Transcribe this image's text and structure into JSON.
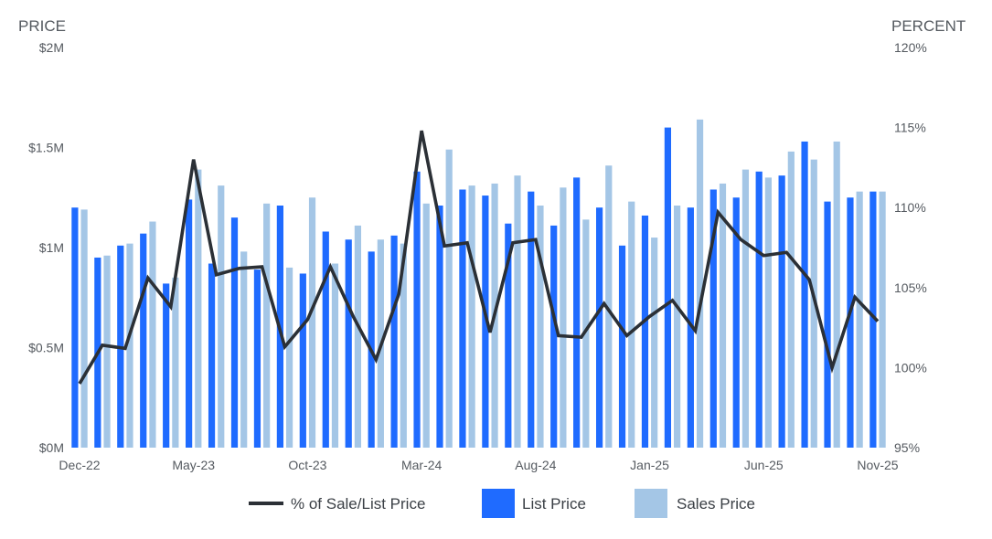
{
  "chart_data": {
    "type": "bar",
    "left_axis_title": "PRICE",
    "right_axis_title": "PERCENT",
    "left_ticks": [
      {
        "value": 0,
        "label": "$0M"
      },
      {
        "value": 500000,
        "label": "$0.5M"
      },
      {
        "value": 1000000,
        "label": "$1M"
      },
      {
        "value": 1500000,
        "label": "$1.5M"
      },
      {
        "value": 2000000,
        "label": "$2M"
      }
    ],
    "right_ticks": [
      {
        "value": 95,
        "label": "95%"
      },
      {
        "value": 100,
        "label": "100%"
      },
      {
        "value": 105,
        "label": "105%"
      },
      {
        "value": 110,
        "label": "110%"
      },
      {
        "value": 115,
        "label": "115%"
      },
      {
        "value": 120,
        "label": "120%"
      }
    ],
    "left_range": [
      0,
      2000000
    ],
    "right_range": [
      95,
      120
    ],
    "grid": false,
    "legend_position": "bottom",
    "categories": [
      "Dec-22",
      "Jan-23",
      "Feb-23",
      "Mar-23",
      "Apr-23",
      "May-23",
      "Jun-23",
      "Jul-23",
      "Aug-23",
      "Sep-23",
      "Oct-23",
      "Nov-23",
      "Dec-23",
      "Jan-24",
      "Feb-24",
      "Mar-24",
      "Apr-24",
      "May-24",
      "Jun-24",
      "Jul-24",
      "Aug-24",
      "Sep-24",
      "Oct-24",
      "Nov-24",
      "Dec-24",
      "Jan-25",
      "Feb-25",
      "Mar-25",
      "Apr-25",
      "May-25",
      "Jun-25",
      "Jul-25",
      "Aug-25",
      "Sep-25",
      "Oct-25",
      "Nov-25"
    ],
    "x_tick_labels": [
      "Dec-22",
      "May-23",
      "Oct-23",
      "Mar-24",
      "Aug-24",
      "Jan-25",
      "Jun-25",
      "Nov-25"
    ],
    "series": [
      {
        "name": "List Price",
        "kind": "bar",
        "color": "#1f6bff",
        "values": [
          1200000,
          950000,
          1010000,
          1070000,
          820000,
          1240000,
          920000,
          1150000,
          890000,
          1210000,
          870000,
          1080000,
          1040000,
          980000,
          1060000,
          1380000,
          1210000,
          1290000,
          1260000,
          1120000,
          1280000,
          1110000,
          1350000,
          1200000,
          1010000,
          1160000,
          1600000,
          1200000,
          1290000,
          1250000,
          1380000,
          1360000,
          1530000,
          1230000,
          1250000,
          1280000
        ]
      },
      {
        "name": "Sales Price",
        "kind": "bar",
        "color": "#a4c6e6",
        "values": [
          1190000,
          960000,
          1020000,
          1130000,
          850000,
          1390000,
          1310000,
          980000,
          1220000,
          900000,
          1250000,
          920000,
          1110000,
          1040000,
          1020000,
          1220000,
          1490000,
          1310000,
          1320000,
          1360000,
          1210000,
          1300000,
          1140000,
          1410000,
          1230000,
          1050000,
          1210000,
          1640000,
          1320000,
          1390000,
          1350000,
          1480000,
          1440000,
          1530000,
          1280000,
          1280000
        ]
      },
      {
        "name": "% of Sale/List Price",
        "kind": "line",
        "axis": "right",
        "color": "#2b3036",
        "values": [
          99.0,
          101.4,
          101.2,
          105.6,
          103.8,
          113.0,
          105.8,
          106.2,
          106.3,
          101.3,
          103.0,
          106.3,
          103.2,
          100.5,
          104.6,
          114.8,
          107.6,
          107.8,
          102.2,
          107.8,
          108.0,
          102.0,
          101.9,
          104.0,
          102.0,
          103.2,
          104.2,
          102.3,
          109.7,
          108.0,
          107.0,
          107.2,
          105.5,
          100.0,
          104.4,
          102.9
        ]
      }
    ],
    "legend": [
      {
        "label": "% of Sale/List Price",
        "symbol": "line",
        "color": "#2b3036"
      },
      {
        "label": "List Price",
        "symbol": "box",
        "color": "#1f6bff"
      },
      {
        "label": "Sales Price",
        "symbol": "box",
        "color": "#a4c6e6"
      }
    ]
  }
}
